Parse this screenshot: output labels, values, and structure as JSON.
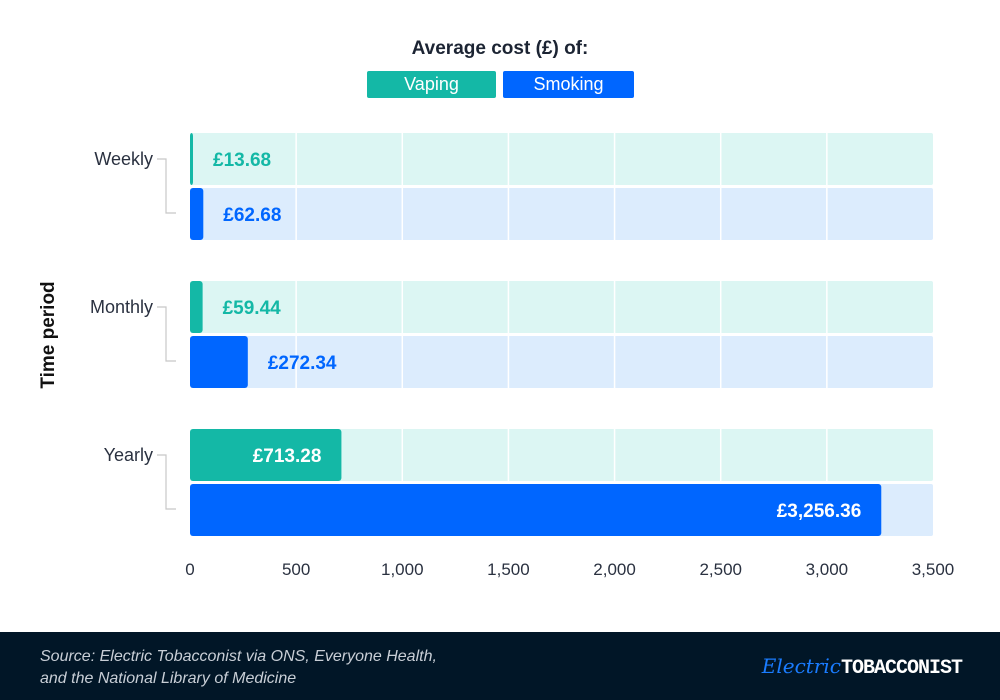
{
  "chart_data": {
    "type": "bar",
    "orientation": "horizontal",
    "title": "Average cost (£) of:",
    "ylabel": "Time period",
    "categories": [
      "Weekly",
      "Monthly",
      "Yearly"
    ],
    "series": [
      {
        "name": "Vaping",
        "values": [
          13.68,
          59.44,
          713.28
        ],
        "labels": [
          "£13.68",
          "£59.44",
          "£713.28"
        ],
        "color": "#14b8a6",
        "track": "#dcf6f3"
      },
      {
        "name": "Smoking",
        "values": [
          62.68,
          272.34,
          3256.36
        ],
        "labels": [
          "£62.68",
          "£272.34",
          "£3,256.36"
        ],
        "color": "#0066ff",
        "track": "#dcecfd"
      }
    ],
    "xlim": [
      0,
      3500
    ],
    "xticks": [
      0,
      500,
      1000,
      1500,
      2000,
      2500,
      3000,
      3500
    ],
    "xtick_labels": [
      "0",
      "500",
      "1,000",
      "1,500",
      "2,000",
      "2,500",
      "3,000",
      "3,500"
    ],
    "grid": true,
    "legend": "top-center"
  },
  "footer": {
    "source_line1": "Source: Electric Tobacconist via ONS, Everyone Health,",
    "source_line2": "and the National Library of Medicine",
    "logo": "ElectricTOBACCONIST"
  }
}
